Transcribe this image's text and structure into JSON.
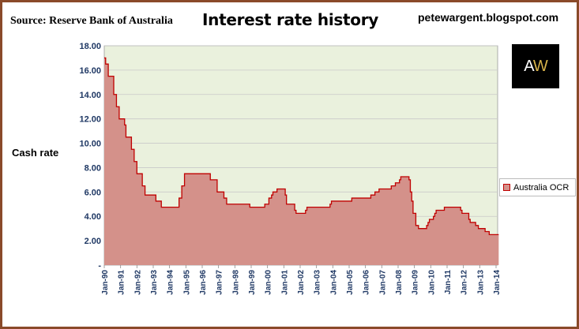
{
  "header": {
    "source": "Source: Reserve Bank of Australia",
    "title": "Interest rate history",
    "blog": "petewargent.blogspot.com"
  },
  "logo": {
    "text_left": "A",
    "text_right": "W",
    "accent_color": "#d6b24a"
  },
  "colors": {
    "area_fill": "#d4918a",
    "line": "#c00000",
    "plot_bg": "#eaf1dd",
    "tick_text": "#1f3864"
  },
  "chart_data": {
    "type": "area",
    "title": "Interest rate history",
    "ylabel": "Cash rate",
    "xlabel": "",
    "ylim": [
      0,
      18
    ],
    "yticks": [
      "-",
      "2.00",
      "4.00",
      "6.00",
      "8.00",
      "10.00",
      "12.00",
      "14.00",
      "16.00",
      "18.00"
    ],
    "xticks": [
      "Jan-90",
      "Jan-91",
      "Jan-92",
      "Jan-93",
      "Jan-94",
      "Jan-95",
      "Jan-96",
      "Jan-97",
      "Jan-98",
      "Jan-99",
      "Jan-00",
      "Jan-01",
      "Jan-02",
      "Jan-03",
      "Jan-04",
      "Jan-05",
      "Jan-06",
      "Jan-07",
      "Jan-08",
      "Jan-09",
      "Jan-10",
      "Jan-11",
      "Jan-12",
      "Jan-13",
      "Jan-14"
    ],
    "grid": true,
    "legend": "right",
    "series": [
      {
        "name": "Australia OCR",
        "points": [
          [
            "1990-01-01",
            17.0
          ],
          [
            "1990-02-01",
            16.5
          ],
          [
            "1990-04-01",
            15.5
          ],
          [
            "1990-08-01",
            14.0
          ],
          [
            "1990-10-01",
            13.0
          ],
          [
            "1990-12-01",
            12.0
          ],
          [
            "1991-04-01",
            11.5
          ],
          [
            "1991-05-01",
            10.5
          ],
          [
            "1991-09-01",
            9.5
          ],
          [
            "1991-11-01",
            8.5
          ],
          [
            "1992-01-01",
            7.5
          ],
          [
            "1992-05-01",
            6.5
          ],
          [
            "1992-07-01",
            5.75
          ],
          [
            "1993-03-01",
            5.25
          ],
          [
            "1993-07-01",
            4.75
          ],
          [
            "1994-08-01",
            5.5
          ],
          [
            "1994-10-01",
            6.5
          ],
          [
            "1994-12-01",
            7.5
          ],
          [
            "1996-07-01",
            7.0
          ],
          [
            "1996-12-01",
            6.0
          ],
          [
            "1997-05-01",
            5.5
          ],
          [
            "1997-07-01",
            5.0
          ],
          [
            "1998-12-01",
            4.75
          ],
          [
            "1999-11-01",
            5.0
          ],
          [
            "2000-02-01",
            5.5
          ],
          [
            "2000-04-01",
            5.75
          ],
          [
            "2000-05-01",
            6.0
          ],
          [
            "2000-08-01",
            6.25
          ],
          [
            "2001-02-01",
            5.75
          ],
          [
            "2001-03-01",
            5.0
          ],
          [
            "2001-09-01",
            4.5
          ],
          [
            "2001-10-01",
            4.25
          ],
          [
            "2002-05-01",
            4.5
          ],
          [
            "2002-06-01",
            4.75
          ],
          [
            "2003-11-01",
            5.0
          ],
          [
            "2003-12-01",
            5.25
          ],
          [
            "2005-03-01",
            5.5
          ],
          [
            "2006-05-01",
            5.75
          ],
          [
            "2006-08-01",
            6.0
          ],
          [
            "2006-11-01",
            6.25
          ],
          [
            "2007-08-01",
            6.5
          ],
          [
            "2007-11-01",
            6.75
          ],
          [
            "2008-02-01",
            7.0
          ],
          [
            "2008-03-01",
            7.25
          ],
          [
            "2008-09-01",
            7.0
          ],
          [
            "2008-10-01",
            6.0
          ],
          [
            "2008-11-01",
            5.25
          ],
          [
            "2008-12-01",
            4.25
          ],
          [
            "2009-02-01",
            3.25
          ],
          [
            "2009-04-01",
            3.0
          ],
          [
            "2009-10-01",
            3.25
          ],
          [
            "2009-11-01",
            3.5
          ],
          [
            "2009-12-01",
            3.75
          ],
          [
            "2010-03-01",
            4.0
          ],
          [
            "2010-04-01",
            4.25
          ],
          [
            "2010-05-01",
            4.5
          ],
          [
            "2010-11-01",
            4.75
          ],
          [
            "2011-11-01",
            4.5
          ],
          [
            "2011-12-01",
            4.25
          ],
          [
            "2012-05-01",
            3.75
          ],
          [
            "2012-06-01",
            3.5
          ],
          [
            "2012-10-01",
            3.25
          ],
          [
            "2012-12-01",
            3.0
          ],
          [
            "2013-05-01",
            2.75
          ],
          [
            "2013-08-01",
            2.5
          ],
          [
            "2014-03-01",
            2.5
          ]
        ]
      }
    ]
  }
}
